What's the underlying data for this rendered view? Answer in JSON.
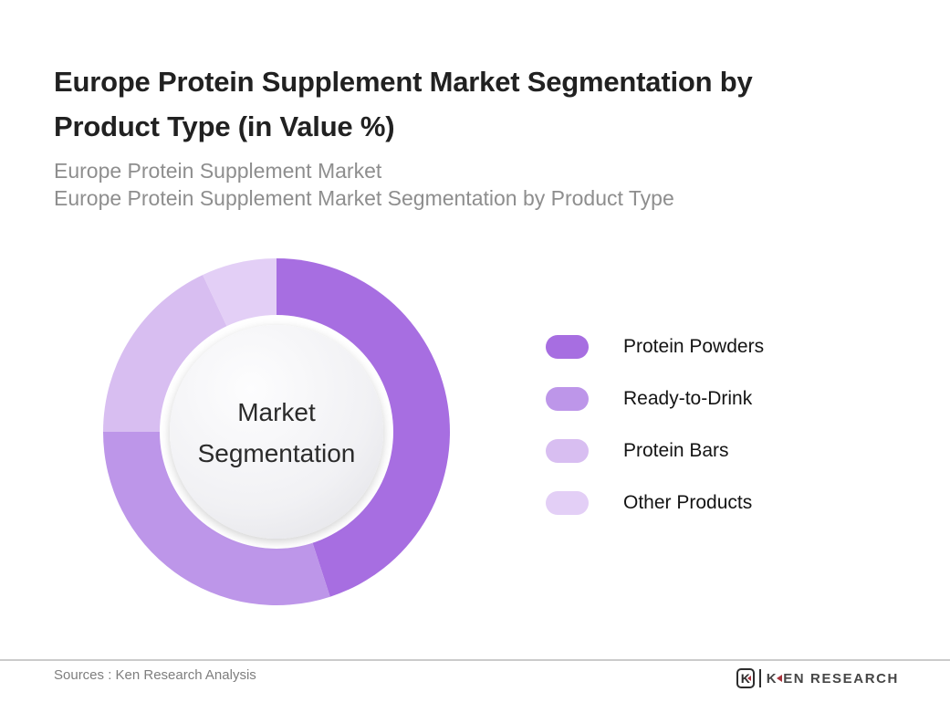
{
  "page": {
    "title_lines": [
      "Europe Protein Supplement Market Segmentation by",
      "Product Type (in Value %)"
    ],
    "subtitle_lines": [
      "Europe Protein Supplement Market",
      "Europe Protein Supplement Market Segmentation by Product Type"
    ]
  },
  "chart_data": {
    "type": "pie",
    "subtype": "donut",
    "title": "Europe Protein Supplement Market Segmentation by Product Type (in Value %)",
    "units": "Value %",
    "categories": [
      "Protein Powders",
      "Ready-to-Drink",
      "Protein Bars",
      "Other Products"
    ],
    "values": [
      45,
      30,
      18,
      7
    ],
    "values_estimated_from_angles": true,
    "colors": [
      "#a76ee1",
      "#bd96e9",
      "#d8bef1",
      "#e3cff6"
    ],
    "start_angle_deg": 0,
    "rotation": "clockwise",
    "data_labels_shown": false,
    "legend_position": "right",
    "center_label_lines": [
      "Market",
      "Segmentation"
    ]
  },
  "legend": {
    "items": [
      {
        "label": "Protein Powders"
      },
      {
        "label": "Ready-to-Drink"
      },
      {
        "label": "Protein Bars"
      },
      {
        "label": "Other Products"
      }
    ]
  },
  "footer": {
    "sources": "Sources : Ken Research Analysis",
    "logo": {
      "icon_letter": "K",
      "text_first": "K",
      "text_rest": "EN RESEARCH"
    }
  }
}
